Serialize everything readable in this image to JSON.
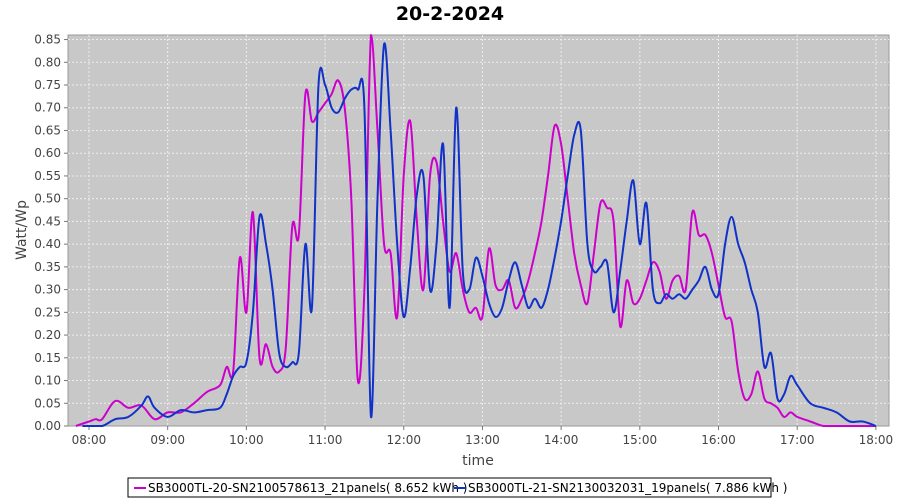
{
  "chart_data": {
    "type": "line",
    "title": "20-2-2024",
    "xlabel": "time",
    "ylabel": "Watt/Wp",
    "xlim": [
      "07:44",
      "18:10"
    ],
    "ylim": [
      0,
      0.86
    ],
    "grid": true,
    "legend_position": "bottom",
    "x_ticks": [
      "08:00",
      "09:00",
      "10:00",
      "11:00",
      "12:00",
      "13:00",
      "14:00",
      "15:00",
      "16:00",
      "17:00",
      "18:00"
    ],
    "y_ticks": [
      "0.00",
      "0.05",
      "0.10",
      "0.15",
      "0.20",
      "0.25",
      "0.30",
      "0.35",
      "0.40",
      "0.45",
      "0.50",
      "0.55",
      "0.60",
      "0.65",
      "0.70",
      "0.75",
      "0.80",
      "0.85"
    ],
    "series": [
      {
        "name": "SB3000TL-20-SN2100578613_21panels( 8.652 kWh )",
        "color": "#cc00cc",
        "x": [
          "07:50",
          "08:00",
          "08:05",
          "08:10",
          "08:20",
          "08:30",
          "08:40",
          "08:50",
          "09:00",
          "09:10",
          "09:20",
          "09:30",
          "09:40",
          "09:45",
          "09:50",
          "09:55",
          "10:00",
          "10:05",
          "10:10",
          "10:15",
          "10:20",
          "10:25",
          "10:30",
          "10:35",
          "10:40",
          "10:45",
          "10:50",
          "10:55",
          "11:00",
          "11:05",
          "11:10",
          "11:15",
          "11:20",
          "11:25",
          "11:30",
          "11:35",
          "11:40",
          "11:45",
          "11:50",
          "11:55",
          "12:00",
          "12:05",
          "12:10",
          "12:15",
          "12:20",
          "12:25",
          "12:30",
          "12:35",
          "12:40",
          "12:45",
          "12:50",
          "12:55",
          "13:00",
          "13:05",
          "13:10",
          "13:15",
          "13:20",
          "13:25",
          "13:30",
          "13:35",
          "13:40",
          "13:45",
          "13:50",
          "13:55",
          "14:00",
          "14:05",
          "14:10",
          "14:15",
          "14:20",
          "14:25",
          "14:30",
          "14:35",
          "14:40",
          "14:45",
          "14:50",
          "14:55",
          "15:00",
          "15:05",
          "15:10",
          "15:15",
          "15:20",
          "15:25",
          "15:30",
          "15:35",
          "15:40",
          "15:45",
          "15:50",
          "15:55",
          "16:00",
          "16:05",
          "16:10",
          "16:15",
          "16:20",
          "16:25",
          "16:30",
          "16:35",
          "16:40",
          "16:45",
          "16:50",
          "16:55",
          "17:00",
          "17:10",
          "17:20",
          "17:30",
          "17:40",
          "17:50",
          "18:00"
        ],
        "values": [
          0.0,
          0.01,
          0.015,
          0.015,
          0.055,
          0.04,
          0.045,
          0.015,
          0.03,
          0.03,
          0.05,
          0.075,
          0.09,
          0.13,
          0.12,
          0.37,
          0.25,
          0.47,
          0.15,
          0.18,
          0.13,
          0.12,
          0.17,
          0.44,
          0.42,
          0.73,
          0.67,
          0.69,
          0.71,
          0.73,
          0.76,
          0.7,
          0.5,
          0.1,
          0.3,
          0.86,
          0.65,
          0.4,
          0.38,
          0.24,
          0.55,
          0.67,
          0.45,
          0.3,
          0.55,
          0.58,
          0.45,
          0.34,
          0.38,
          0.3,
          0.25,
          0.26,
          0.24,
          0.39,
          0.31,
          0.3,
          0.32,
          0.26,
          0.28,
          0.32,
          0.38,
          0.45,
          0.55,
          0.66,
          0.62,
          0.5,
          0.38,
          0.31,
          0.27,
          0.38,
          0.49,
          0.48,
          0.45,
          0.22,
          0.32,
          0.27,
          0.28,
          0.32,
          0.36,
          0.34,
          0.28,
          0.32,
          0.33,
          0.3,
          0.47,
          0.42,
          0.42,
          0.38,
          0.31,
          0.24,
          0.23,
          0.12,
          0.06,
          0.07,
          0.12,
          0.06,
          0.05,
          0.04,
          0.02,
          0.03,
          0.02,
          0.01,
          0.0,
          0.0,
          0.0,
          0.0,
          0.0
        ]
      },
      {
        "name": "SB3000TL-21-SN2130032031_19panels( 7.886 kWh )",
        "color": "#1032c8",
        "x": [
          "07:55",
          "08:00",
          "08:10",
          "08:20",
          "08:30",
          "08:40",
          "08:45",
          "08:50",
          "09:00",
          "09:10",
          "09:20",
          "09:30",
          "09:40",
          "09:45",
          "09:50",
          "09:55",
          "10:00",
          "10:05",
          "10:10",
          "10:15",
          "10:20",
          "10:25",
          "10:30",
          "10:35",
          "10:40",
          "10:45",
          "10:50",
          "10:55",
          "11:00",
          "11:05",
          "11:10",
          "11:15",
          "11:20",
          "11:25",
          "11:30",
          "11:35",
          "11:40",
          "11:45",
          "11:50",
          "11:55",
          "12:00",
          "12:05",
          "12:10",
          "12:15",
          "12:20",
          "12:25",
          "12:30",
          "12:35",
          "12:40",
          "12:45",
          "12:50",
          "12:55",
          "13:00",
          "13:05",
          "13:10",
          "13:15",
          "13:20",
          "13:25",
          "13:30",
          "13:35",
          "13:40",
          "13:45",
          "13:50",
          "13:55",
          "14:00",
          "14:05",
          "14:10",
          "14:15",
          "14:20",
          "14:25",
          "14:30",
          "14:35",
          "14:40",
          "14:45",
          "14:50",
          "14:55",
          "15:00",
          "15:05",
          "15:10",
          "15:15",
          "15:20",
          "15:25",
          "15:30",
          "15:35",
          "15:40",
          "15:45",
          "15:50",
          "15:55",
          "16:00",
          "16:05",
          "16:10",
          "16:15",
          "16:20",
          "16:25",
          "16:30",
          "16:35",
          "16:40",
          "16:45",
          "16:50",
          "16:55",
          "17:00",
          "17:10",
          "17:20",
          "17:30",
          "17:40",
          "17:50",
          "18:00"
        ],
        "values": [
          0.0,
          0.0,
          0.0,
          0.015,
          0.02,
          0.045,
          0.065,
          0.04,
          0.02,
          0.035,
          0.03,
          0.035,
          0.04,
          0.07,
          0.11,
          0.13,
          0.14,
          0.25,
          0.46,
          0.4,
          0.3,
          0.16,
          0.13,
          0.14,
          0.16,
          0.4,
          0.26,
          0.75,
          0.75,
          0.7,
          0.69,
          0.72,
          0.74,
          0.74,
          0.7,
          0.02,
          0.5,
          0.84,
          0.65,
          0.4,
          0.24,
          0.35,
          0.51,
          0.55,
          0.3,
          0.4,
          0.62,
          0.26,
          0.7,
          0.34,
          0.3,
          0.37,
          0.33,
          0.27,
          0.24,
          0.26,
          0.32,
          0.36,
          0.31,
          0.26,
          0.28,
          0.26,
          0.3,
          0.37,
          0.45,
          0.55,
          0.64,
          0.65,
          0.4,
          0.34,
          0.35,
          0.36,
          0.25,
          0.34,
          0.45,
          0.54,
          0.4,
          0.49,
          0.3,
          0.27,
          0.29,
          0.28,
          0.29,
          0.28,
          0.3,
          0.32,
          0.35,
          0.3,
          0.29,
          0.4,
          0.46,
          0.4,
          0.36,
          0.3,
          0.25,
          0.13,
          0.16,
          0.06,
          0.07,
          0.11,
          0.09,
          0.05,
          0.04,
          0.03,
          0.01,
          0.01,
          0.0
        ]
      }
    ]
  }
}
